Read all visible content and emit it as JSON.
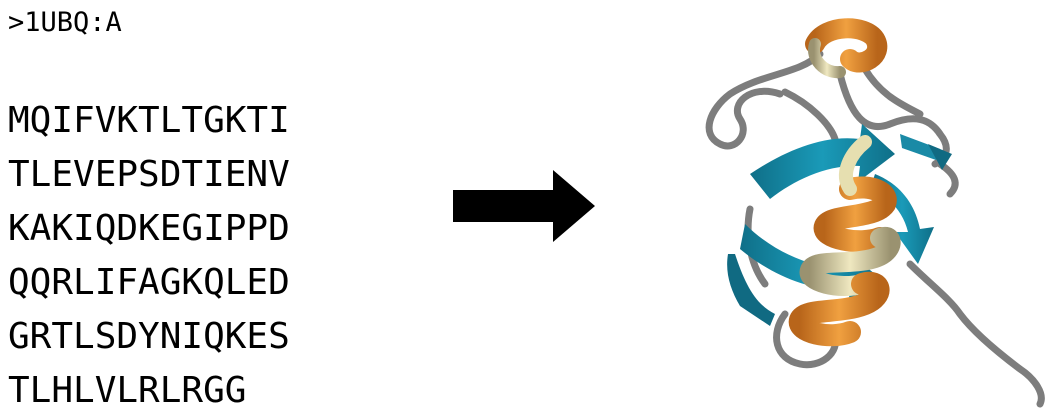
{
  "header": {
    "label": ">1UBQ:A"
  },
  "sequence": {
    "lines": [
      "MQIFVKTLTGKTI",
      "TLEVEPSDTIENV",
      "KAKIQDKEGIPPD",
      "QQRLIFAGKQLED",
      "GRTLSDYNIQKES",
      "TLHLVLRLRGG"
    ]
  },
  "arrow": {
    "color": "#000000"
  },
  "structure": {
    "helix_color": "#e08a2a",
    "helix_inner_color": "#e6dfb0",
    "strand_color": "#1a8aa6",
    "strand_shadow_color": "#106a82",
    "coil_color": "#7a7a7a"
  }
}
